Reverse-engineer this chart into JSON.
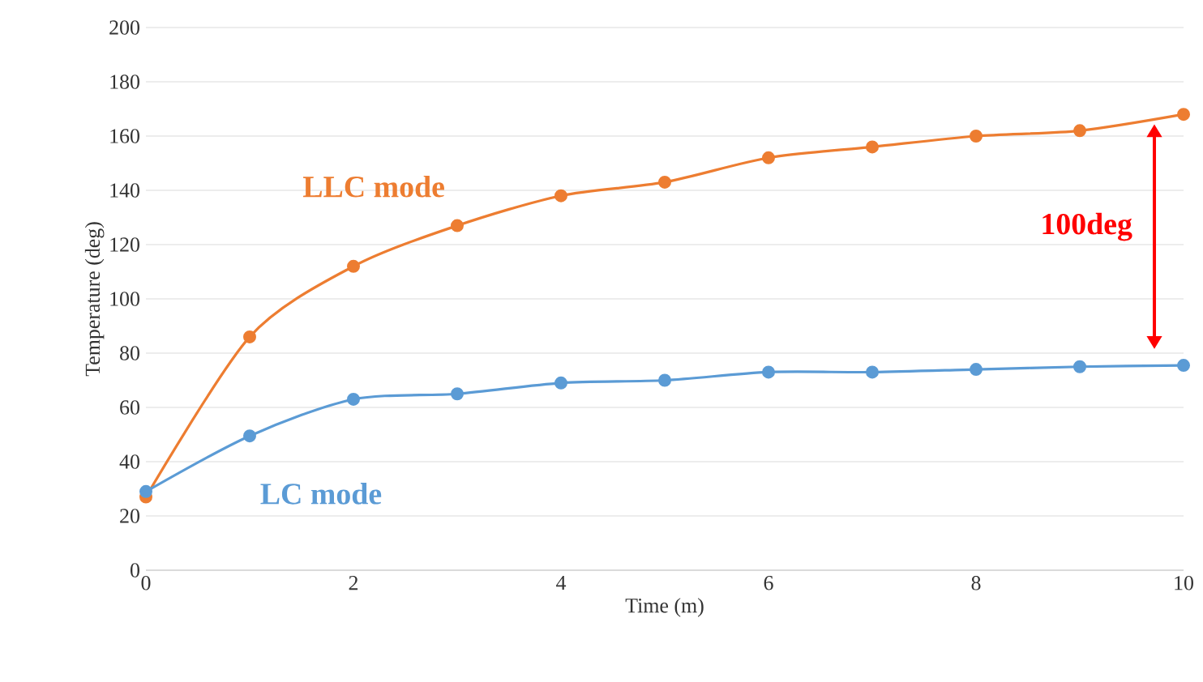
{
  "chart_data": {
    "type": "line",
    "xlabel": "Time (m)",
    "ylabel": "Temperature (deg)",
    "x": [
      0,
      1,
      2,
      3,
      4,
      5,
      6,
      7,
      8,
      9,
      10
    ],
    "series": [
      {
        "name": "LLC mode",
        "color": "#ed7d31",
        "values": [
          27,
          86,
          112,
          127,
          138,
          143,
          152,
          156,
          160,
          162,
          168
        ]
      },
      {
        "name": "LC mode",
        "color": "#5b9bd5",
        "values": [
          29,
          49.5,
          63,
          65,
          69,
          70,
          73,
          73,
          74,
          75,
          75.5
        ]
      }
    ],
    "xlim": [
      0,
      10
    ],
    "ylim": [
      0,
      200
    ],
    "xticks": [
      0,
      2,
      4,
      6,
      8,
      10
    ],
    "yticks": [
      0,
      20,
      40,
      60,
      80,
      100,
      120,
      140,
      160,
      180,
      200
    ],
    "grid": "y",
    "marker": "circle",
    "line_style": "solid",
    "annotations": [
      "100deg"
    ]
  }
}
